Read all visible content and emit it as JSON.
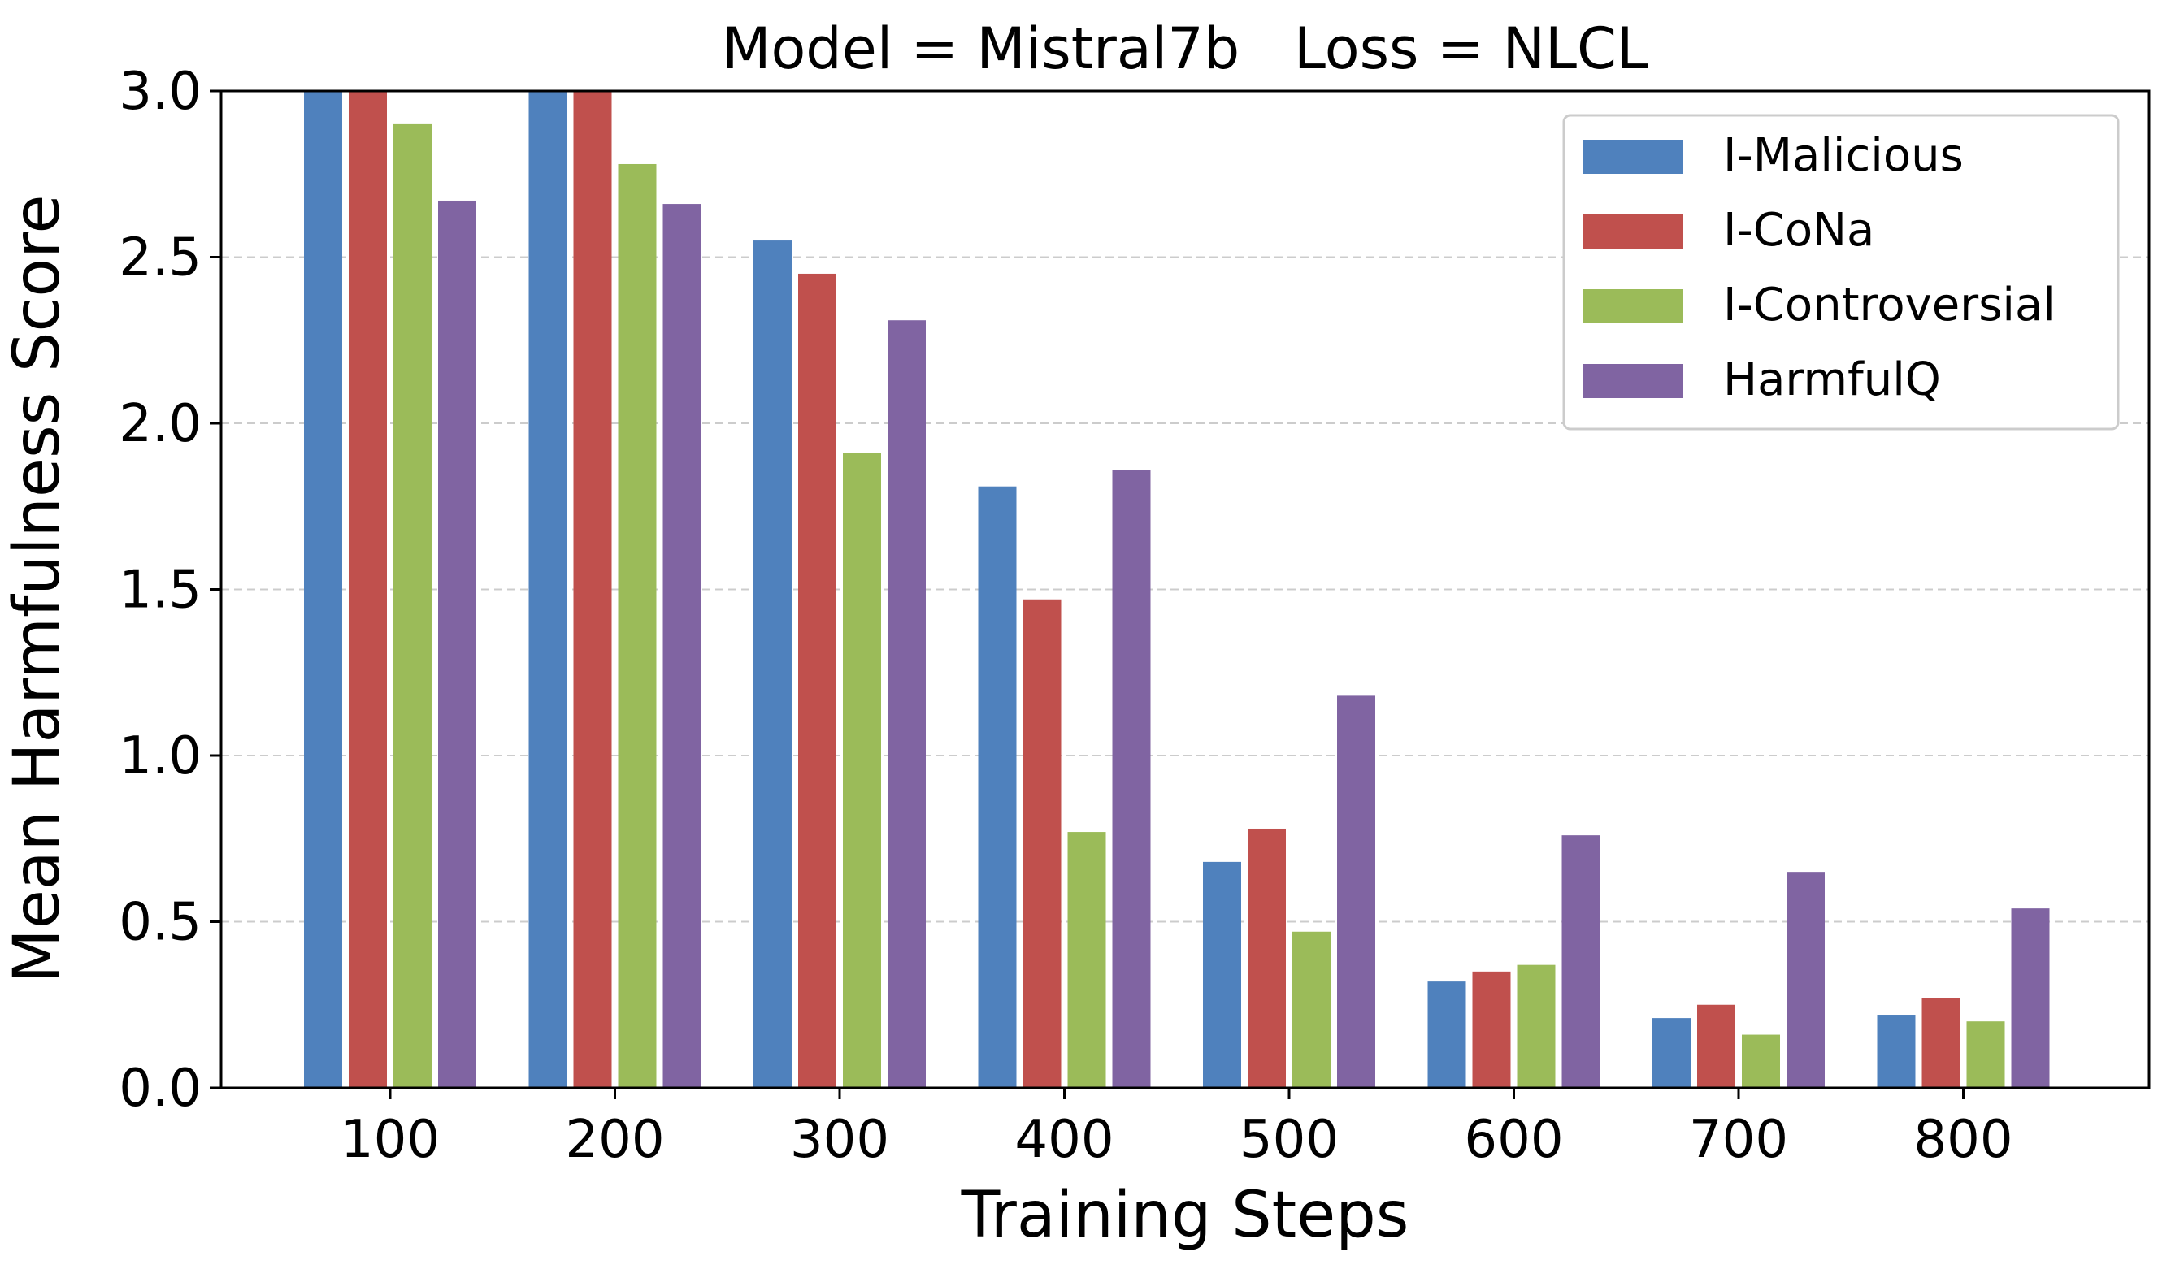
{
  "chart_data": {
    "type": "bar",
    "title": "Model = Mistral7b   Loss = NLCL",
    "xlabel": "Training Steps",
    "ylabel": "Mean Harmfulness Score",
    "ylim": [
      0,
      3.0
    ],
    "yticks": [
      "0.0",
      "0.5",
      "1.0",
      "1.5",
      "2.0",
      "2.5",
      "3.0"
    ],
    "grid": "horizontal dashed",
    "legend_position": "top-right",
    "categories": [
      "100",
      "200",
      "300",
      "400",
      "500",
      "600",
      "700",
      "800"
    ],
    "series": [
      {
        "name": "I-Malicious",
        "color": "#4f81bd",
        "values": [
          3.0,
          3.0,
          2.55,
          1.81,
          0.68,
          0.32,
          0.21,
          0.22
        ]
      },
      {
        "name": "I-CoNa",
        "color": "#c0504d",
        "values": [
          3.0,
          3.0,
          2.45,
          1.47,
          0.78,
          0.35,
          0.25,
          0.27
        ]
      },
      {
        "name": "I-Controversial",
        "color": "#9bbb59",
        "values": [
          2.9,
          2.78,
          1.91,
          0.77,
          0.47,
          0.37,
          0.16,
          0.2
        ]
      },
      {
        "name": "HarmfulQ",
        "color": "#8064a2",
        "values": [
          2.67,
          2.66,
          2.31,
          1.86,
          1.18,
          0.76,
          0.65,
          0.54
        ]
      }
    ]
  }
}
